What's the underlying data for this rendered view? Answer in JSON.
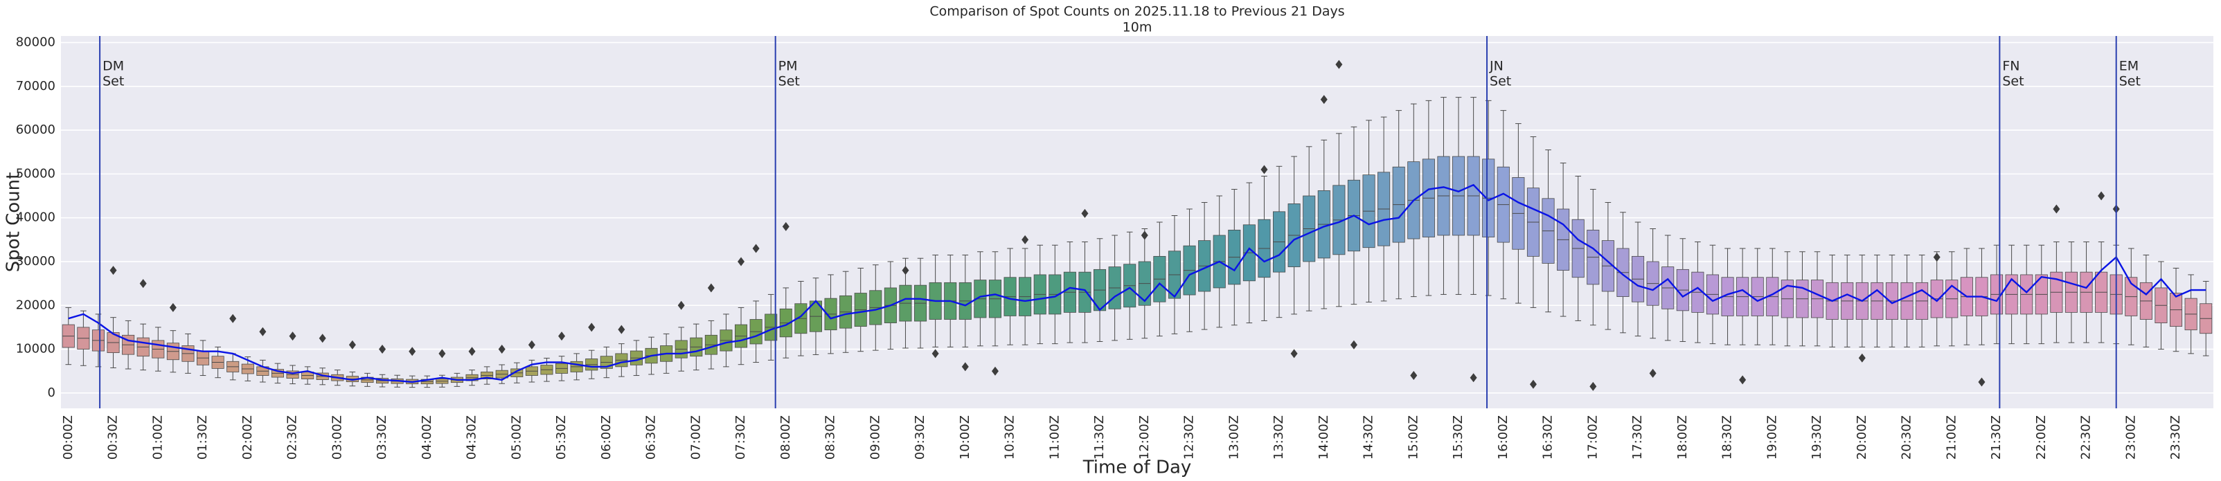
{
  "chart_data": {
    "type": "boxplot",
    "title": "Comparison of Spot Counts on 2025.11.18 to Previous 21 Days",
    "subtitle": "10m",
    "xlabel": "Time of Day",
    "ylabel": "Spot Count",
    "grid": true,
    "ylim": [
      -3500,
      81500
    ],
    "yticks": [
      0,
      10000,
      20000,
      30000,
      40000,
      50000,
      60000,
      70000,
      80000
    ],
    "categories": [
      "00:00Z",
      null,
      null,
      "00:30Z",
      null,
      null,
      "01:00Z",
      null,
      null,
      "01:30Z",
      null,
      null,
      "02:00Z",
      null,
      null,
      "02:30Z",
      null,
      null,
      "03:00Z",
      null,
      null,
      "03:30Z",
      null,
      null,
      "04:00Z",
      null,
      null,
      "04:30Z",
      null,
      null,
      "05:00Z",
      null,
      null,
      "05:30Z",
      null,
      null,
      "06:00Z",
      null,
      null,
      "06:30Z",
      null,
      null,
      "07:00Z",
      null,
      null,
      "07:30Z",
      null,
      null,
      "08:00Z",
      null,
      null,
      "08:30Z",
      null,
      null,
      "09:00Z",
      null,
      null,
      "09:30Z",
      null,
      null,
      "10:00Z",
      null,
      null,
      "10:30Z",
      null,
      null,
      "11:00Z",
      null,
      null,
      "11:30Z",
      null,
      null,
      "12:00Z",
      null,
      null,
      "12:30Z",
      null,
      null,
      "13:00Z",
      null,
      null,
      "13:30Z",
      null,
      null,
      "14:00Z",
      null,
      null,
      "14:30Z",
      null,
      null,
      "15:00Z",
      null,
      null,
      "15:30Z",
      null,
      null,
      "16:00Z",
      null,
      null,
      "16:30Z",
      null,
      null,
      "17:00Z",
      null,
      null,
      "17:30Z",
      null,
      null,
      "18:00Z",
      null,
      null,
      "18:30Z",
      null,
      null,
      "19:00Z",
      null,
      null,
      "19:30Z",
      null,
      null,
      "20:00Z",
      null,
      null,
      "20:30Z",
      null,
      null,
      "21:00Z",
      null,
      null,
      "21:30Z",
      null,
      null,
      "22:00Z",
      null,
      null,
      "22:30Z",
      null,
      null,
      "23:00Z",
      null,
      null,
      "23:30Z",
      null,
      null
    ],
    "palette": [
      "#d4959c",
      "#c9a07a",
      "#a5a35a",
      "#6c9e52",
      "#4e9c78",
      "#4f98a6",
      "#8ea2d6",
      "#bb98d6",
      "#d794c0",
      "#d898a6"
    ],
    "boxes": {
      "median": [
        13000,
        12500,
        12000,
        11500,
        11000,
        10500,
        10000,
        9500,
        9000,
        8000,
        7000,
        6000,
        5500,
        5000,
        4500,
        4200,
        4000,
        3800,
        3500,
        3200,
        3000,
        2800,
        2700,
        2600,
        2600,
        2700,
        3000,
        3500,
        4000,
        4300,
        4600,
        5000,
        5300,
        5600,
        6000,
        6500,
        7000,
        7500,
        8000,
        8500,
        9000,
        10000,
        10500,
        11000,
        12000,
        13000,
        14000,
        15000,
        16000,
        17000,
        17500,
        18000,
        18500,
        19000,
        19500,
        20000,
        20500,
        20500,
        21000,
        21000,
        21000,
        21500,
        21500,
        22000,
        22000,
        22500,
        22500,
        23000,
        23000,
        23500,
        24000,
        24500,
        25000,
        26000,
        27000,
        28000,
        29000,
        30000,
        31000,
        32000,
        33000,
        34500,
        36000,
        37500,
        38500,
        39500,
        40500,
        41500,
        42000,
        43000,
        44000,
        44500,
        45000,
        45000,
        45000,
        44500,
        43000,
        41000,
        39000,
        37000,
        35000,
        33000,
        31000,
        29000,
        27500,
        26000,
        25000,
        24000,
        23500,
        23000,
        22500,
        22000,
        22000,
        22000,
        22000,
        21500,
        21500,
        21500,
        21000,
        21000,
        21000,
        21000,
        21000,
        21000,
        21000,
        21500,
        21500,
        22000,
        22000,
        22500,
        22500,
        22500,
        22500,
        23000,
        23000,
        23000,
        23000,
        22500,
        22000,
        21000,
        20000,
        19000,
        18000,
        17000
      ],
      "q1": [
        10400,
        10000,
        9600,
        9200,
        8800,
        8400,
        8000,
        7600,
        7200,
        6400,
        5600,
        4800,
        4400,
        4000,
        3600,
        3360,
        3200,
        3040,
        2800,
        2560,
        2400,
        2240,
        2160,
        2080,
        2080,
        2160,
        2400,
        2800,
        3200,
        3440,
        3680,
        4000,
        4240,
        4480,
        4800,
        5200,
        5600,
        6000,
        6400,
        6800,
        7200,
        8000,
        8400,
        8800,
        9600,
        10400,
        11200,
        12000,
        12800,
        13600,
        14000,
        14400,
        14800,
        15200,
        15600,
        16000,
        16400,
        16400,
        16800,
        16800,
        16800,
        17200,
        17200,
        17600,
        17600,
        18000,
        18000,
        18400,
        18400,
        18800,
        19200,
        19600,
        20000,
        20800,
        21600,
        22400,
        23200,
        24000,
        24800,
        25600,
        26400,
        27600,
        28800,
        30000,
        30800,
        31600,
        32400,
        33200,
        33600,
        34400,
        35200,
        35600,
        36000,
        36000,
        36000,
        35600,
        34400,
        32800,
        31200,
        29600,
        28000,
        26400,
        24800,
        23200,
        22000,
        20800,
        20000,
        19200,
        18800,
        18400,
        18000,
        17600,
        17600,
        17600,
        17600,
        17200,
        17200,
        17200,
        16800,
        16800,
        16800,
        16800,
        16800,
        16800,
        16800,
        17200,
        17200,
        17600,
        17600,
        18000,
        18000,
        18000,
        18000,
        18400,
        18400,
        18400,
        18400,
        18000,
        17600,
        16800,
        16000,
        15200,
        14400,
        13600
      ],
      "q3": [
        15600,
        15000,
        14400,
        13800,
        13200,
        12600,
        12000,
        11400,
        10800,
        9600,
        8400,
        7200,
        6600,
        6000,
        5400,
        5040,
        4800,
        4560,
        4200,
        3840,
        3600,
        3360,
        3240,
        3120,
        3120,
        3240,
        3600,
        4200,
        4800,
        5160,
        5520,
        6000,
        6360,
        6720,
        7200,
        7800,
        8400,
        9000,
        9600,
        10200,
        10800,
        12000,
        12600,
        13200,
        14400,
        15600,
        16800,
        18000,
        19200,
        20400,
        21000,
        21600,
        22200,
        22800,
        23400,
        24000,
        24600,
        24600,
        25200,
        25200,
        25200,
        25800,
        25800,
        26400,
        26400,
        27000,
        27000,
        27600,
        27600,
        28200,
        28800,
        29400,
        30000,
        31200,
        32400,
        33600,
        34800,
        36000,
        37200,
        38400,
        39600,
        41400,
        43200,
        45000,
        46200,
        47400,
        48600,
        49800,
        50400,
        51600,
        52800,
        53400,
        54000,
        54000,
        54000,
        53400,
        51600,
        49200,
        46800,
        44400,
        42000,
        39600,
        37200,
        34800,
        33000,
        31200,
        30000,
        28800,
        28200,
        27600,
        27000,
        26400,
        26400,
        26400,
        26400,
        25800,
        25800,
        25800,
        25200,
        25200,
        25200,
        25200,
        25200,
        25200,
        25200,
        25800,
        25800,
        26400,
        26400,
        27000,
        27000,
        27000,
        27000,
        27600,
        27600,
        27600,
        27600,
        27000,
        26400,
        25200,
        24000,
        22800,
        21600,
        20400
      ],
      "whislo": [
        6500,
        6250,
        6000,
        5750,
        5500,
        5250,
        5000,
        4750,
        4500,
        4000,
        3500,
        3000,
        2750,
        2500,
        2250,
        2100,
        2000,
        1900,
        1750,
        1600,
        1500,
        1400,
        1350,
        1300,
        1300,
        1350,
        1500,
        1750,
        2000,
        2150,
        2300,
        2500,
        2650,
        2800,
        3000,
        3250,
        3500,
        3750,
        4000,
        4250,
        4500,
        5000,
        5250,
        5500,
        6000,
        6500,
        7000,
        7500,
        8000,
        8500,
        8750,
        9000,
        9250,
        9500,
        9750,
        10000,
        10250,
        10250,
        10500,
        10500,
        10500,
        10750,
        10750,
        11000,
        11000,
        11250,
        11250,
        11500,
        11500,
        11750,
        12000,
        12250,
        12500,
        13000,
        13500,
        14000,
        14500,
        15000,
        15500,
        16000,
        16500,
        17250,
        18000,
        18750,
        19250,
        19750,
        20250,
        20750,
        21000,
        21500,
        22000,
        22250,
        22500,
        22500,
        22500,
        22250,
        21500,
        20500,
        19500,
        18500,
        17500,
        16500,
        15500,
        14500,
        13750,
        13000,
        12500,
        12000,
        11750,
        11500,
        11250,
        11000,
        11000,
        11000,
        11000,
        10750,
        10750,
        10750,
        10500,
        10500,
        10500,
        10500,
        10500,
        10500,
        10500,
        10750,
        10750,
        11000,
        11000,
        11250,
        11250,
        11250,
        11250,
        11500,
        11500,
        11500,
        11500,
        11250,
        11000,
        10500,
        10000,
        9500,
        9000,
        8500
      ],
      "whishi": [
        19500,
        18750,
        18000,
        17250,
        16500,
        15750,
        15000,
        14250,
        13500,
        12000,
        10500,
        9000,
        8250,
        7500,
        6750,
        6300,
        6000,
        5700,
        5250,
        4800,
        4500,
        4200,
        4050,
        3900,
        3900,
        4050,
        4500,
        5250,
        6000,
        6450,
        6900,
        7500,
        7950,
        8400,
        9000,
        9750,
        10500,
        11250,
        12000,
        12750,
        13500,
        15000,
        15750,
        16500,
        18000,
        19500,
        21000,
        22500,
        24000,
        25500,
        26250,
        27000,
        27750,
        28500,
        29250,
        30000,
        30750,
        30750,
        31500,
        31500,
        31500,
        32250,
        32250,
        33000,
        33000,
        33750,
        33750,
        34500,
        34500,
        35250,
        36000,
        36750,
        37500,
        39000,
        40500,
        42000,
        43500,
        45000,
        46500,
        48000,
        49500,
        51750,
        54000,
        56250,
        57750,
        59250,
        60750,
        62250,
        63000,
        64500,
        66000,
        66750,
        67500,
        67500,
        67500,
        66750,
        64500,
        61500,
        58500,
        55500,
        52500,
        49500,
        46500,
        43500,
        41250,
        39000,
        37500,
        36000,
        35250,
        34500,
        33750,
        33000,
        33000,
        33000,
        33000,
        32250,
        32250,
        32250,
        31500,
        31500,
        31500,
        31500,
        31500,
        31500,
        31500,
        32250,
        32250,
        33000,
        33000,
        33750,
        33750,
        33750,
        33750,
        34500,
        34500,
        34500,
        34500,
        33750,
        33000,
        31500,
        30000,
        28500,
        27000,
        25500
      ]
    },
    "outliers": {
      "index": [
        3,
        5,
        7,
        11,
        13,
        15,
        17,
        19,
        21,
        23,
        25,
        27,
        29,
        31,
        33,
        35,
        37,
        41,
        43,
        45,
        46,
        48,
        56,
        58,
        60,
        62,
        64,
        68,
        72,
        80,
        82,
        84,
        85,
        86,
        90,
        94,
        98,
        102,
        106,
        112,
        120,
        125,
        128,
        133,
        136,
        137
      ],
      "values": [
        28000,
        25000,
        19500,
        17000,
        14000,
        13000,
        12500,
        11000,
        10000,
        9500,
        9000,
        9500,
        10000,
        11000,
        13000,
        15000,
        14500,
        20000,
        24000,
        30000,
        33000,
        38000,
        28000,
        9000,
        6000,
        5000,
        35000,
        41000,
        36000,
        51000,
        9000,
        67000,
        75000,
        11000,
        4000,
        3500,
        2000,
        1500,
        4500,
        3000,
        8000,
        31000,
        2500,
        42000,
        45000,
        42000
      ]
    },
    "line": {
      "color": "#0a14e6",
      "values": [
        17000,
        18000,
        16000,
        13500,
        12000,
        11500,
        11000,
        10500,
        10000,
        9500,
        9500,
        9000,
        7500,
        6000,
        5000,
        4500,
        5000,
        4000,
        3500,
        3000,
        3500,
        3000,
        2800,
        2500,
        3000,
        3500,
        3000,
        3000,
        3500,
        3000,
        5000,
        6500,
        7000,
        7000,
        6500,
        6000,
        6000,
        7000,
        7500,
        8500,
        9000,
        9000,
        9500,
        10500,
        11500,
        12000,
        13000,
        14500,
        15500,
        17500,
        21000,
        17000,
        18000,
        18500,
        19000,
        20000,
        21500,
        21500,
        21000,
        21000,
        20000,
        22000,
        22500,
        21500,
        21000,
        21500,
        22000,
        24000,
        23500,
        19000,
        22000,
        24000,
        21000,
        25000,
        22000,
        27000,
        28500,
        30000,
        28000,
        33000,
        30000,
        31500,
        35000,
        36500,
        38000,
        39000,
        40500,
        38500,
        39500,
        40000,
        44000,
        46500,
        47000,
        46000,
        47500,
        44000,
        45500,
        43500,
        42000,
        40500,
        38500,
        35000,
        33000,
        30000,
        27000,
        24500,
        23500,
        26000,
        22000,
        24000,
        21000,
        22500,
        23500,
        21000,
        22500,
        24500,
        24000,
        22500,
        21000,
        22500,
        21000,
        23500,
        20500,
        22000,
        23500,
        21000,
        24500,
        22000,
        22000,
        21000,
        26000,
        23000,
        26500,
        26000,
        25000,
        24000,
        28000,
        31000,
        25000,
        22500,
        26000,
        22000,
        23500,
        23500
      ]
    },
    "vline_color": "#2a3fb0",
    "vlines": [
      {
        "x": 2.1,
        "label": [
          "DM",
          "Set"
        ]
      },
      {
        "x": 47.3,
        "label": [
          "PM",
          "Set"
        ]
      },
      {
        "x": 94.9,
        "label": [
          "JN",
          "Set"
        ]
      },
      {
        "x": 129.2,
        "label": [
          "FN",
          "Set"
        ]
      },
      {
        "x": 137.0,
        "label": [
          "EM",
          "Set"
        ]
      }
    ]
  }
}
